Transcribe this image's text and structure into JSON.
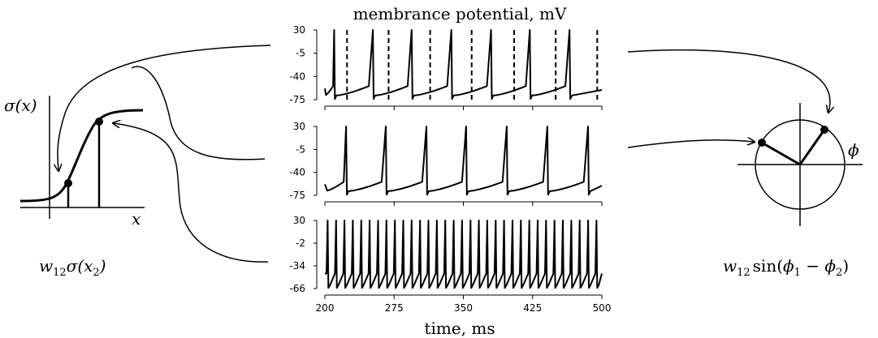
{
  "title": "membrance potential, mV",
  "xlabel": "time, ms",
  "sigmoid_panel": {
    "ylabel": "σ(x)",
    "xlabel": "x",
    "formula": {
      "w": "w",
      "sub12": "12",
      "sigma_open": "σ(",
      "x": "x",
      "sub2": "2",
      "close": ")"
    }
  },
  "phase_panel": {
    "label": "ϕ",
    "formula": {
      "w": "w",
      "sub12": "12",
      "sin_open": "sin(",
      "phi1": "ϕ",
      "sub1": "1",
      "minus": " − ",
      "phi2": "ϕ",
      "sub2": "2",
      "close": ")"
    }
  },
  "chart_data": [
    {
      "type": "line",
      "name": "trace-1",
      "ytick_labels": [
        "30",
        "-5",
        "-40",
        "-75"
      ],
      "yticks": [
        30,
        -5,
        -40,
        -75
      ],
      "ylim": [
        -75,
        30
      ],
      "xlim": [
        200,
        500
      ],
      "spike_times": [
        210,
        252,
        294,
        337,
        380,
        422,
        465
      ],
      "markers": [
        224,
        269,
        314,
        359,
        405,
        450,
        495
      ]
    },
    {
      "type": "line",
      "name": "trace-2",
      "ytick_labels": [
        "30",
        "-5",
        "-40",
        "-75"
      ],
      "yticks": [
        30,
        -5,
        -40,
        -75
      ],
      "ylim": [
        -75,
        30
      ],
      "xlim": [
        200,
        500
      ],
      "spike_times": [
        223,
        266,
        310,
        353,
        397,
        441,
        485
      ]
    },
    {
      "type": "line",
      "name": "trace-3",
      "ytick_labels": [
        "30",
        "-2",
        "-34",
        "-66"
      ],
      "yticks": [
        30,
        -2,
        -34,
        -66
      ],
      "ylim": [
        -66,
        30
      ],
      "xlim": [
        200,
        500
      ],
      "xticks": [
        200,
        275,
        350,
        425,
        500
      ],
      "xtick_labels": [
        "200",
        "275",
        "350",
        "425",
        "500"
      ],
      "period": 9.1
    }
  ]
}
